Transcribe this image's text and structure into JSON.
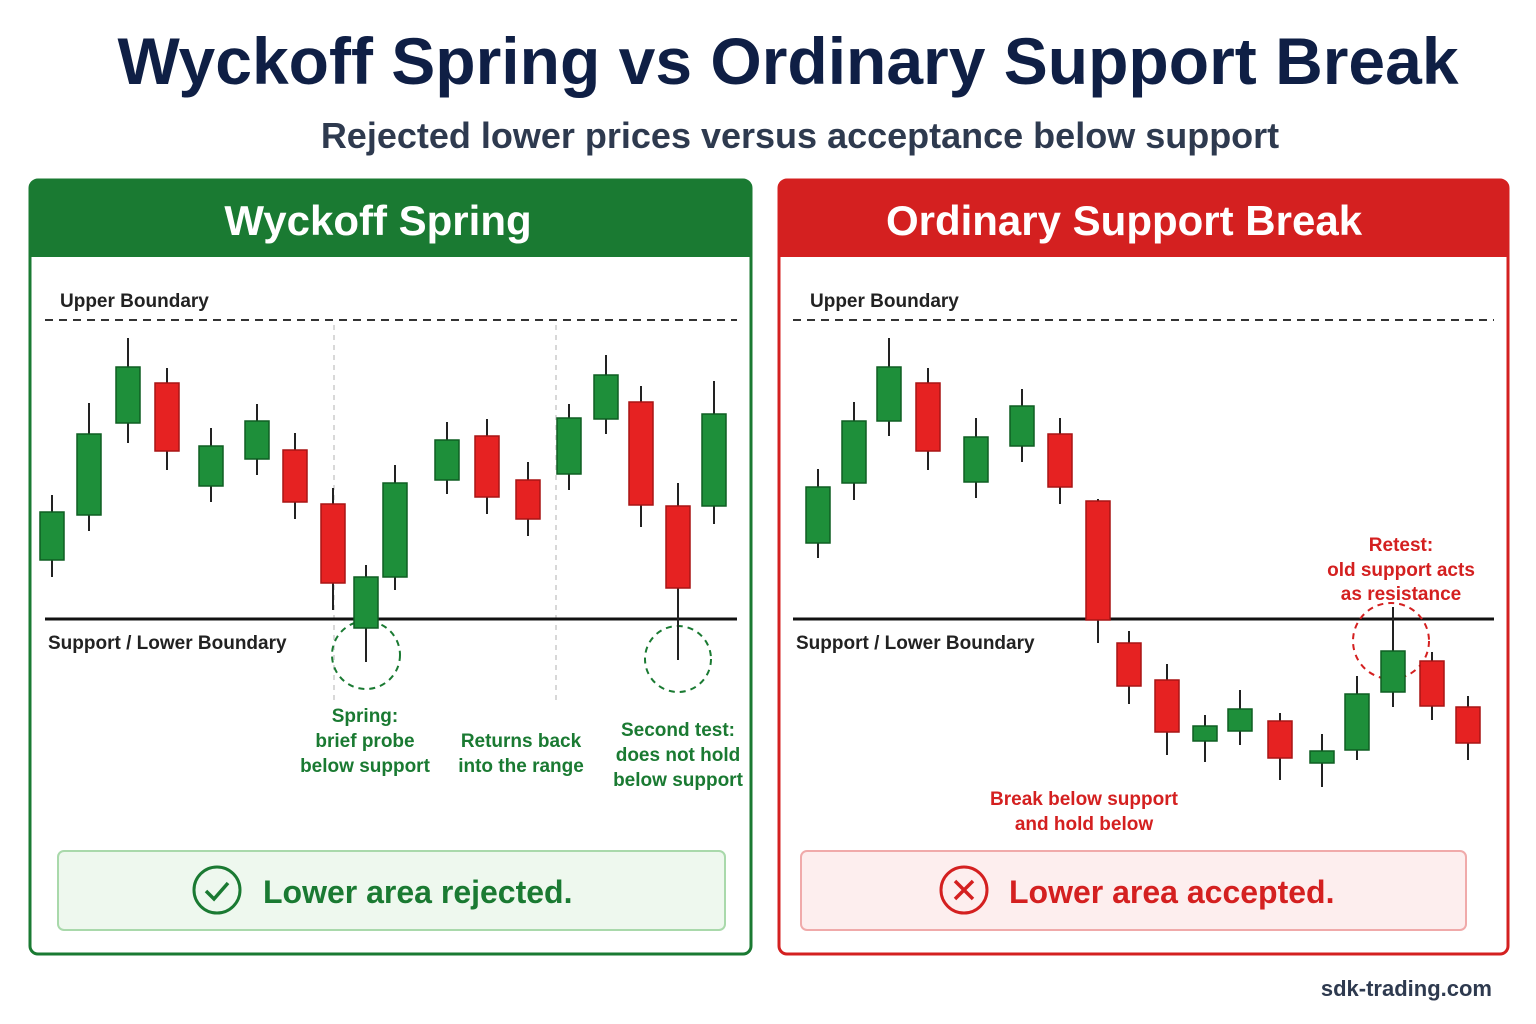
{
  "header": {
    "title": "Wyckoff Spring vs Ordinary Support Break",
    "subtitle": "Rejected lower prices versus acceptance below support"
  },
  "panels": [
    {
      "title": "Wyckoff Spring",
      "upper_label": "Upper Boundary",
      "support_label": "Support / Lower Boundary",
      "annotations": [
        {
          "lines": [
            "Spring:",
            "brief probe",
            "below support"
          ]
        },
        {
          "lines": [
            "Returns back",
            "into the range"
          ]
        },
        {
          "lines": [
            "Second test:",
            "does not hold",
            "below support"
          ]
        }
      ],
      "verdict": "Lower area rejected."
    },
    {
      "title": "Ordinary Support Break",
      "upper_label": "Upper Boundary",
      "support_label": "Support / Lower Boundary",
      "annotations": [
        {
          "lines": [
            "Retest:",
            "old support acts",
            "as resistance"
          ]
        },
        {
          "lines": [
            "Break below support",
            "and hold below"
          ]
        }
      ],
      "verdict": "Lower area accepted."
    }
  ],
  "footer": "sdk-trading.com"
}
